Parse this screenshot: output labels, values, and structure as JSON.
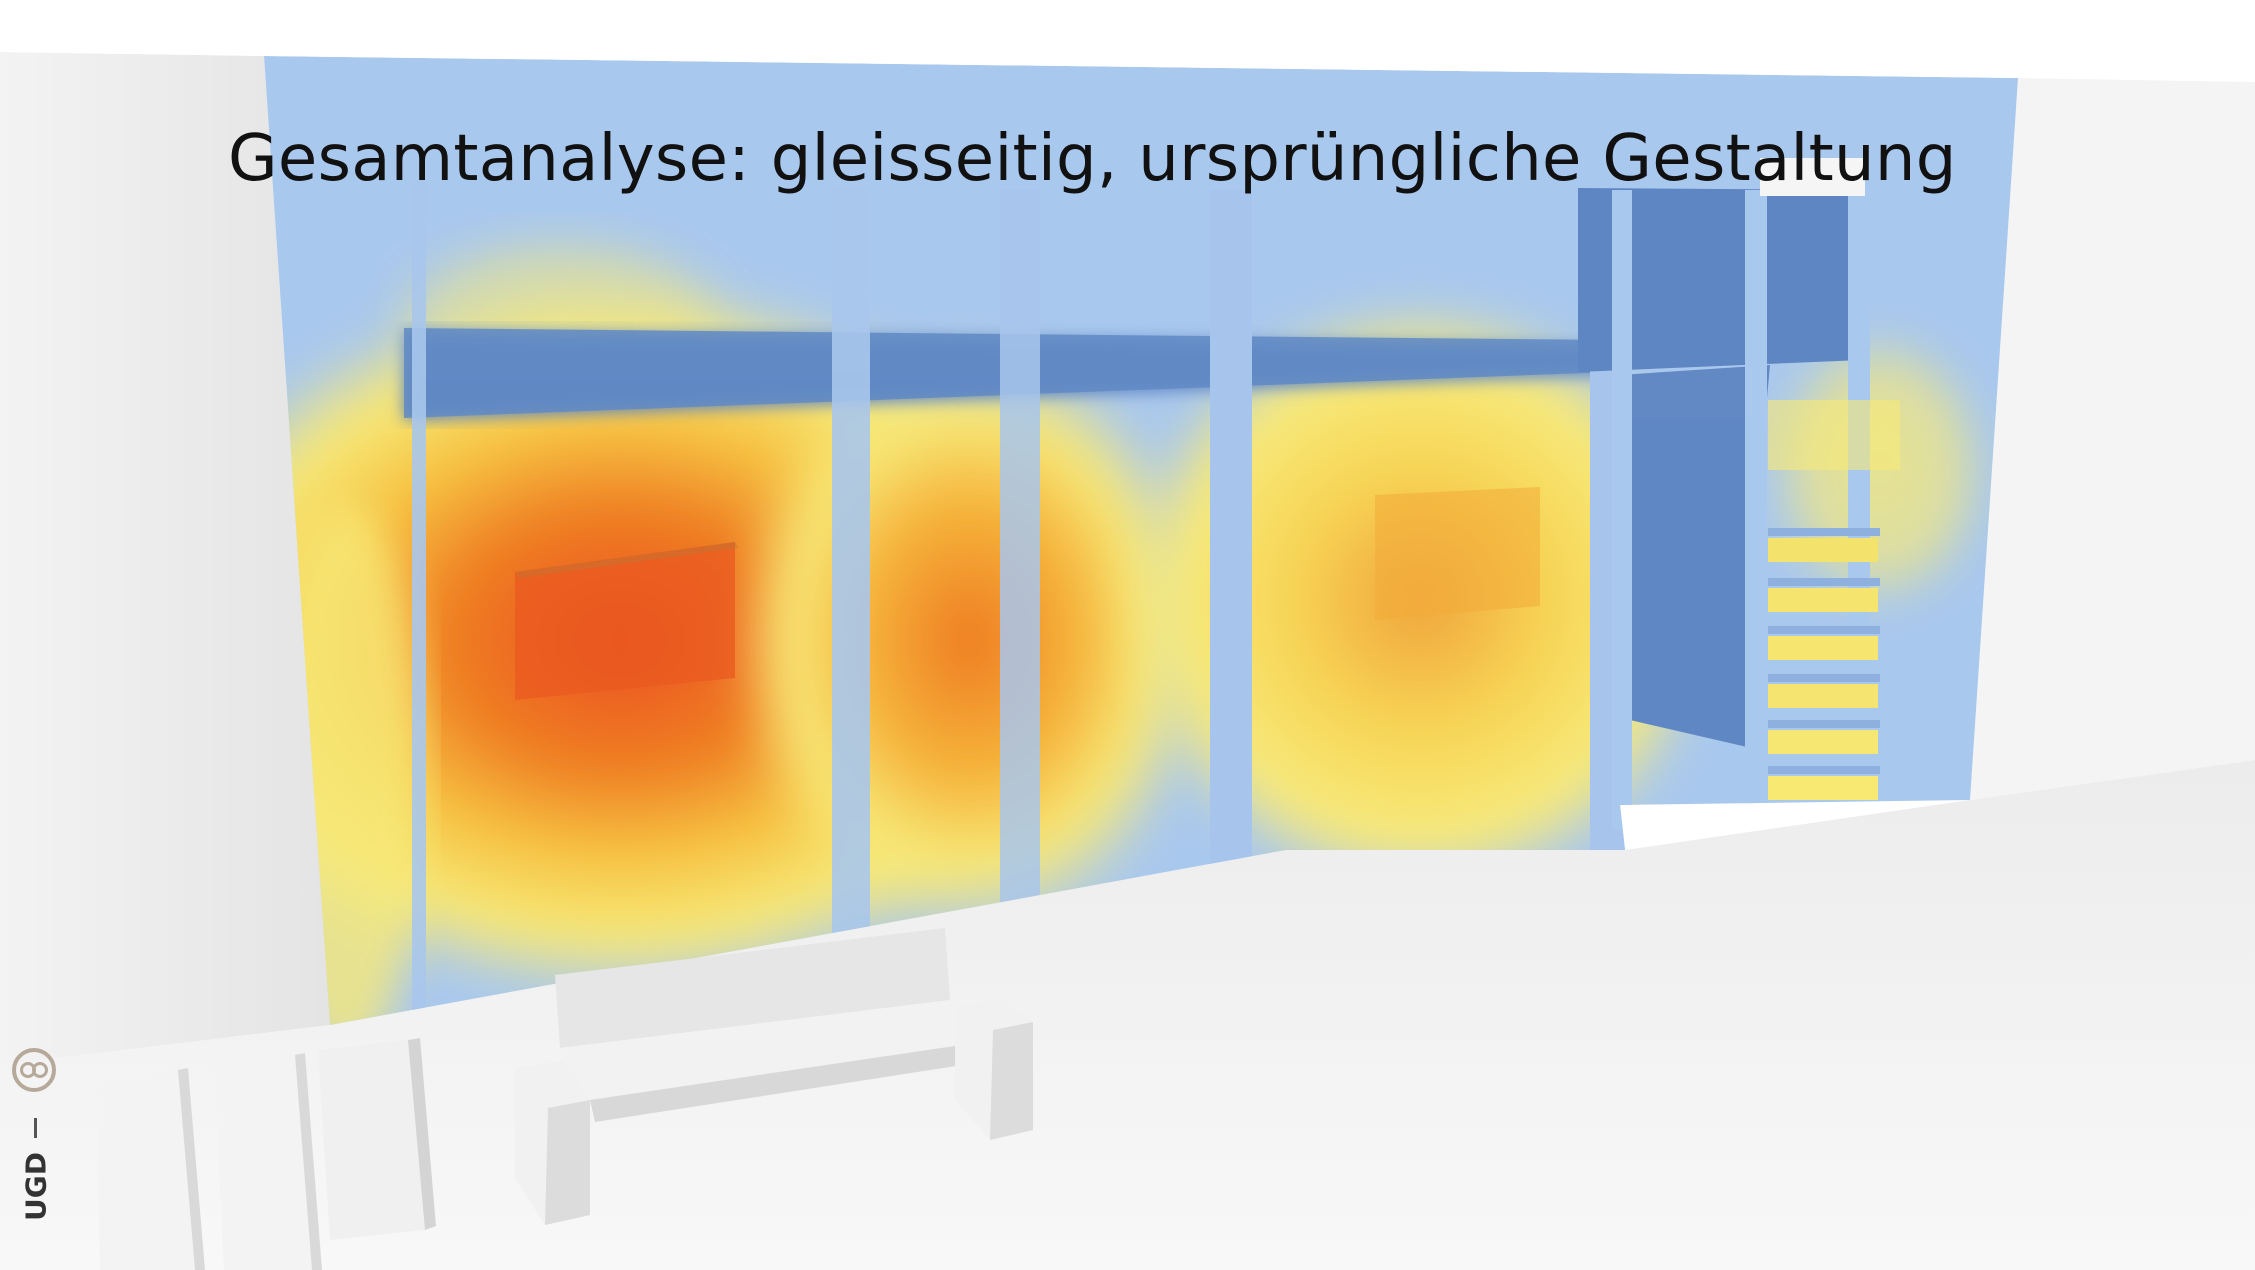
{
  "slide": {
    "title": "Gesamtanalyse: gleisseitig, ursprüngliche Gestaltung"
  },
  "branding": {
    "logo_text": "UGD",
    "icon": "infinity-circle-icon"
  },
  "colors": {
    "background": "#f2f2f2",
    "cool": "#a9c8ee",
    "dark_blue": "#5f86c2",
    "yellow": "#f8ea78",
    "orange": "#ee8a2a",
    "red": "#ea5420",
    "accent_logo": "#b7a99a"
  }
}
